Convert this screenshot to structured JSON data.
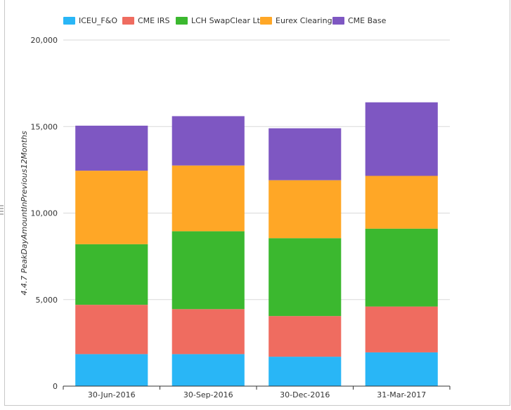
{
  "chart_data": {
    "type": "bar",
    "stacked": true,
    "categories": [
      "30-Jun-2016",
      "30-Sep-2016",
      "30-Dec-2016",
      "31-Mar-2017"
    ],
    "series": [
      {
        "name": "ICEU_F&O",
        "color": "#29b6f6",
        "values": [
          1850,
          1850,
          1700,
          1950
        ]
      },
      {
        "name": "CME IRS",
        "color": "#ef6c60",
        "values": [
          2850,
          2600,
          2350,
          2650
        ]
      },
      {
        "name": "LCH SwapClear Ltd",
        "color": "#3bb82f",
        "values": [
          3500,
          4500,
          4500,
          4500
        ]
      },
      {
        "name": "Eurex Clearing",
        "color": "#ffa726",
        "values": [
          4250,
          3800,
          3350,
          3050
        ]
      },
      {
        "name": "CME Base",
        "color": "#7e57c2",
        "values": [
          2600,
          2850,
          3000,
          4250
        ]
      }
    ],
    "ylabel": "4.4.7 PeakDayAmountInPrevious12Months",
    "xlabel": "",
    "ylim": [
      0,
      20000
    ],
    "yticks": [
      0,
      5000,
      10000,
      15000,
      20000
    ],
    "ytick_labels": [
      "0",
      "5,000",
      "10,000",
      "15,000",
      "20,000"
    ],
    "grid": true,
    "legend_position": "top"
  }
}
